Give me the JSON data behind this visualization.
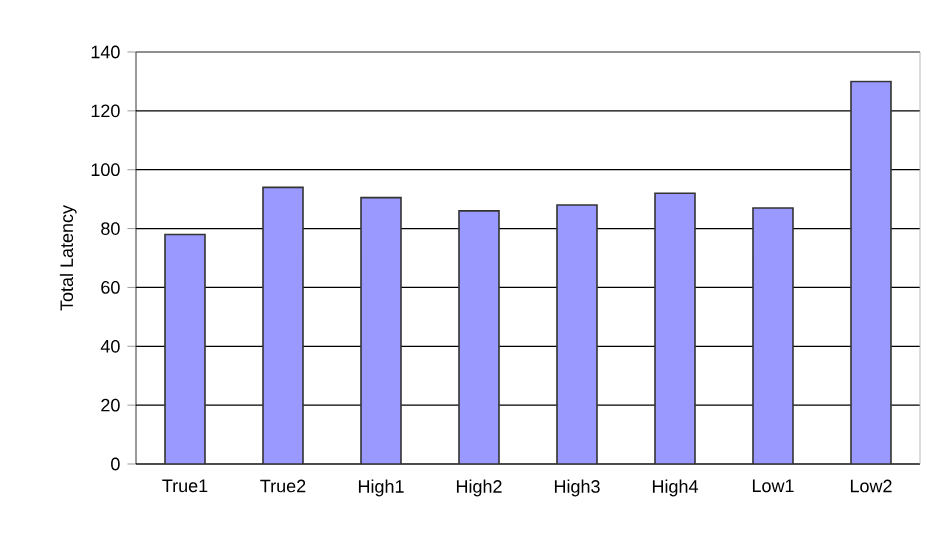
{
  "chart_data": {
    "type": "bar",
    "ylabel": "Total Latency",
    "categories": [
      "True1",
      "True2",
      "High1",
      "High2",
      "High3",
      "High4",
      "Low1",
      "Low2"
    ],
    "values": [
      78,
      94,
      90.5,
      86,
      88,
      92,
      87,
      130
    ],
    "color": "#9999ff",
    "ylim": [
      0,
      140
    ],
    "yticks": [
      0,
      20,
      40,
      60,
      80,
      100,
      120,
      140
    ],
    "grid": "y"
  }
}
